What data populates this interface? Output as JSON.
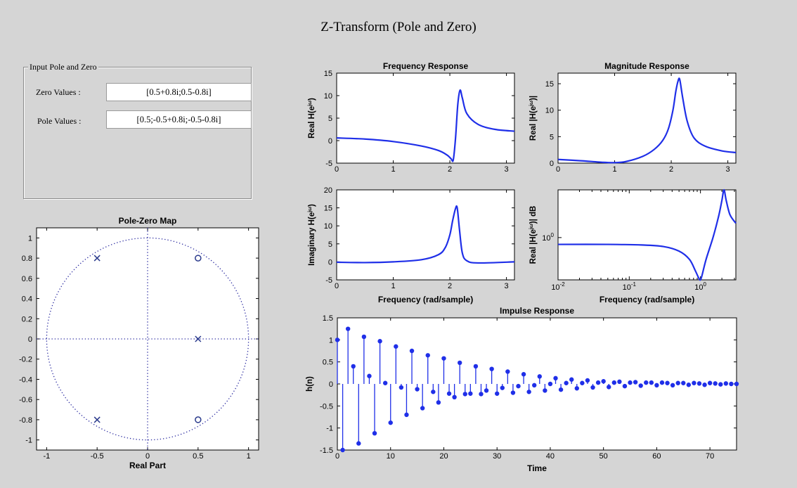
{
  "window": {
    "title": "Z-Transform (Pole and Zero)"
  },
  "input_panel": {
    "legend": "Input Pole and Zero",
    "zero_label": "Zero Values :",
    "zero_value": "[0.5+0.8i;0.5-0.8i]",
    "pole_label": "Pole Values :",
    "pole_value": "[0.5;-0.5+0.8i;-0.5-0.8i]"
  },
  "colors": {
    "background": "#d5d5d5",
    "plot_line": "#1f2fe8",
    "marker": "#2a3a8c"
  },
  "chart_data": [
    {
      "id": "pole-zero-map",
      "type": "scatter",
      "title": "Pole-Zero Map",
      "xlabel": "Real Part",
      "ylabel": "",
      "xlim": [
        -1.1,
        1.1
      ],
      "ylim": [
        -1.1,
        1.1
      ],
      "xticks": [
        "-1",
        "-0.5",
        "0",
        "0.5",
        "1"
      ],
      "yticks": [
        "-1",
        "-0.8",
        "-0.6",
        "-0.4",
        "-0.2",
        "0",
        "0.2",
        "0.4",
        "0.6",
        "0.8",
        "1"
      ],
      "zeros": [
        [
          0.5,
          0.8
        ],
        [
          0.5,
          -0.8
        ]
      ],
      "poles": [
        [
          0.5,
          0
        ],
        [
          -0.5,
          0.8
        ],
        [
          -0.5,
          -0.8
        ]
      ],
      "unit_circle": true
    },
    {
      "id": "real-frequency-response",
      "type": "line",
      "title": "Frequency Response",
      "xlabel": "",
      "ylabel": "Real H(e^jω)",
      "xlim": [
        0,
        3.1416
      ],
      "ylim": [
        -5,
        15
      ],
      "xticks": [
        "0",
        "1",
        "2",
        "3"
      ],
      "yticks": [
        "-5",
        "0",
        "5",
        "10",
        "15"
      ],
      "x": [
        0,
        0.5,
        1.0,
        1.5,
        1.8,
        1.95,
        2.02,
        2.06,
        2.1,
        2.14,
        2.18,
        2.22,
        2.3,
        2.5,
        2.8,
        3.1416
      ],
      "y": [
        0.6,
        0.35,
        -0.2,
        -1.2,
        -2.2,
        -3.2,
        -4.0,
        -4.3,
        0.5,
        8.0,
        11.2,
        9.5,
        6.0,
        3.6,
        2.5,
        2.1
      ]
    },
    {
      "id": "magnitude-response",
      "type": "line",
      "title": "Magnitude Response",
      "xlabel": "",
      "ylabel": "Real |H(e^jω)|",
      "xlim": [
        0,
        3.1416
      ],
      "ylim": [
        0,
        17
      ],
      "xticks": [
        "0",
        "1",
        "2",
        "3"
      ],
      "yticks": [
        "0",
        "5",
        "10",
        "15"
      ],
      "x": [
        0,
        0.4,
        0.8,
        1.0,
        1.2,
        1.5,
        1.7,
        1.85,
        1.95,
        2.03,
        2.08,
        2.12,
        2.15,
        2.2,
        2.28,
        2.4,
        2.6,
        2.9,
        3.1416
      ],
      "y": [
        0.7,
        0.45,
        0.15,
        0.1,
        0.3,
        1.3,
        2.6,
        4.3,
        6.5,
        10.0,
        13.5,
        15.5,
        15.8,
        12.5,
        8.0,
        4.8,
        3.2,
        2.3,
        2.0
      ]
    },
    {
      "id": "imaginary-frequency-response",
      "type": "line",
      "title": "",
      "xlabel": "Frequency (rad/sample)",
      "ylabel": "Imaginary H(e^jω)",
      "xlim": [
        0,
        3.1416
      ],
      "ylim": [
        -5,
        20
      ],
      "xticks": [
        "0",
        "1",
        "2",
        "3"
      ],
      "yticks": [
        "-5",
        "0",
        "5",
        "10",
        "15",
        "20"
      ],
      "x": [
        0,
        0.5,
        1.0,
        1.5,
        1.8,
        1.92,
        2.0,
        2.05,
        2.1,
        2.13,
        2.17,
        2.22,
        2.3,
        2.5,
        3.1416
      ],
      "y": [
        -0.1,
        -0.2,
        0.0,
        0.6,
        2.0,
        4.0,
        7.5,
        11.5,
        14.8,
        15.0,
        9.0,
        2.5,
        0.3,
        -0.3,
        0.0
      ]
    },
    {
      "id": "log-magnitude-response",
      "type": "line",
      "title": "",
      "xlabel": "Frequency (rad/sample)",
      "ylabel": "Real |H(e^jω)| dB",
      "xscale": "log",
      "yscale": "log",
      "xlim": [
        0.01,
        3.1416
      ],
      "ylim": [
        0.13,
        10
      ],
      "xticks": [
        "10^-2",
        "10^-1",
        "10^0"
      ],
      "yticks": [
        "10^0"
      ],
      "x": [
        0.01,
        0.05,
        0.15,
        0.3,
        0.5,
        0.7,
        0.85,
        0.95,
        1.0,
        1.05,
        1.2,
        1.5,
        1.8,
        2.0,
        2.14,
        2.3,
        2.6,
        3.1416
      ],
      "y": [
        0.72,
        0.72,
        0.7,
        0.65,
        0.52,
        0.35,
        0.2,
        0.14,
        0.13,
        0.16,
        0.35,
        1.0,
        2.8,
        6.0,
        10.0,
        6.0,
        3.0,
        2.0
      ]
    },
    {
      "id": "impulse-response",
      "type": "stem",
      "title": "Impulse Response",
      "xlabel": "Time",
      "ylabel": "h(n)",
      "xlim": [
        0,
        75
      ],
      "ylim": [
        -1.5,
        1.5
      ],
      "xticks": [
        "0",
        "10",
        "20",
        "30",
        "40",
        "50",
        "60",
        "70"
      ],
      "yticks": [
        "-1.5",
        "-1",
        "-0.5",
        "0",
        "0.5",
        "1",
        "1.5"
      ],
      "n": [
        0,
        1,
        2,
        3,
        4,
        5,
        6,
        7,
        8,
        9,
        10,
        11,
        12,
        13,
        14,
        15,
        16,
        17,
        18,
        19,
        20,
        21,
        22,
        23,
        24,
        25,
        26,
        27,
        28,
        29,
        30,
        31,
        32,
        33,
        34,
        35,
        36,
        37,
        38,
        39,
        40,
        41,
        42,
        43,
        44,
        45,
        46,
        47,
        48,
        49,
        50,
        51,
        52,
        53,
        54,
        55,
        56,
        57,
        58,
        59,
        60,
        61,
        62,
        63,
        64,
        65,
        66,
        67,
        68,
        69,
        70,
        71,
        72,
        73,
        74,
        75
      ],
      "h": [
        1.0,
        -1.5,
        1.25,
        0.4,
        -1.35,
        1.07,
        0.18,
        -1.12,
        0.97,
        0.02,
        -0.88,
        0.85,
        -0.08,
        -0.7,
        0.75,
        -0.12,
        -0.55,
        0.65,
        -0.18,
        -0.42,
        0.58,
        -0.22,
        -0.3,
        0.48,
        -0.23,
        -0.22,
        0.4,
        -0.23,
        -0.15,
        0.34,
        -0.22,
        -0.09,
        0.28,
        -0.2,
        -0.05,
        0.22,
        -0.18,
        -0.03,
        0.17,
        -0.15,
        0.0,
        0.13,
        -0.13,
        0.02,
        0.1,
        -0.1,
        0.02,
        0.08,
        -0.08,
        0.03,
        0.06,
        -0.07,
        0.03,
        0.05,
        -0.05,
        0.03,
        0.04,
        -0.04,
        0.03,
        0.03,
        -0.03,
        0.03,
        0.02,
        -0.03,
        0.02,
        0.02,
        -0.02,
        0.02,
        0.01,
        -0.02,
        0.02,
        0.01,
        -0.01,
        0.01,
        0.0,
        0.0
      ]
    }
  ]
}
